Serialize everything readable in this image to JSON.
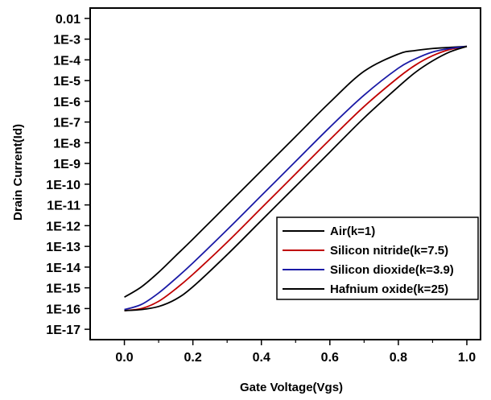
{
  "chart_data": {
    "type": "line",
    "title": "",
    "xlabel": "Gate Voltage(Vgs)",
    "ylabel": "Drain Current(Id)",
    "xlim": [
      -0.1,
      1.04
    ],
    "ylim_exp": [
      -17.5,
      -1.5
    ],
    "y_scale": "log",
    "grid": false,
    "legend_position": "lower-right",
    "x_ticks": [
      {
        "value": 0.0,
        "label": "0.0"
      },
      {
        "value": 0.2,
        "label": "0.2"
      },
      {
        "value": 0.4,
        "label": "0.4"
      },
      {
        "value": 0.6,
        "label": "0.6"
      },
      {
        "value": 0.8,
        "label": "0.8"
      },
      {
        "value": 1.0,
        "label": "1.0"
      }
    ],
    "y_ticks": [
      {
        "exp": -2,
        "label": "0.01"
      },
      {
        "exp": -3,
        "label": "1E-3"
      },
      {
        "exp": -4,
        "label": "1E-4"
      },
      {
        "exp": -5,
        "label": "1E-5"
      },
      {
        "exp": -6,
        "label": "1E-6"
      },
      {
        "exp": -7,
        "label": "1E-7"
      },
      {
        "exp": -8,
        "label": "1E-8"
      },
      {
        "exp": -9,
        "label": "1E-9"
      },
      {
        "exp": -10,
        "label": "1E-10"
      },
      {
        "exp": -11,
        "label": "1E-11"
      },
      {
        "exp": -12,
        "label": "1E-12"
      },
      {
        "exp": -13,
        "label": "1E-13"
      },
      {
        "exp": -14,
        "label": "1E-14"
      },
      {
        "exp": -15,
        "label": "1E-15"
      },
      {
        "exp": -16,
        "label": "1E-16"
      },
      {
        "exp": -17,
        "label": "1E-17"
      }
    ],
    "series": [
      {
        "name": "Air(k=1)",
        "color": "#000000",
        "x": [
          0.0,
          0.05,
          0.1,
          0.15,
          0.2,
          0.3,
          0.4,
          0.5,
          0.6,
          0.7,
          0.8,
          0.85,
          0.9,
          0.95,
          1.0
        ],
        "log10_y": [
          -15.45,
          -14.95,
          -14.25,
          -13.45,
          -12.65,
          -11.0,
          -9.35,
          -7.7,
          -6.05,
          -4.55,
          -3.72,
          -3.55,
          -3.45,
          -3.4,
          -3.35
        ]
      },
      {
        "name": "Silicon nitride(k=7.5)",
        "color": "#c00000",
        "x": [
          0.0,
          0.05,
          0.1,
          0.15,
          0.2,
          0.3,
          0.4,
          0.5,
          0.6,
          0.7,
          0.8,
          0.85,
          0.9,
          0.95,
          1.0
        ],
        "log10_y": [
          -16.1,
          -16.0,
          -15.65,
          -15.05,
          -14.35,
          -12.8,
          -11.15,
          -9.5,
          -7.85,
          -6.25,
          -4.85,
          -4.25,
          -3.8,
          -3.5,
          -3.35
        ]
      },
      {
        "name": "Silicon dioxide(k=3.9)",
        "color": "#1a1aa6",
        "x": [
          0.0,
          0.05,
          0.1,
          0.15,
          0.2,
          0.3,
          0.4,
          0.5,
          0.6,
          0.7,
          0.8,
          0.85,
          0.9,
          0.95,
          1.0
        ],
        "log10_y": [
          -16.05,
          -15.8,
          -15.25,
          -14.55,
          -13.8,
          -12.2,
          -10.55,
          -8.9,
          -7.25,
          -5.7,
          -4.4,
          -3.95,
          -3.62,
          -3.45,
          -3.35
        ]
      },
      {
        "name": "Hafnium oxide(k=25)",
        "color": "#000000",
        "x": [
          0.0,
          0.05,
          0.1,
          0.15,
          0.2,
          0.3,
          0.4,
          0.5,
          0.6,
          0.7,
          0.8,
          0.85,
          0.9,
          0.95,
          1.0
        ],
        "log10_y": [
          -16.1,
          -16.05,
          -15.9,
          -15.55,
          -14.95,
          -13.4,
          -11.75,
          -10.1,
          -8.45,
          -6.8,
          -5.3,
          -4.6,
          -4.05,
          -3.62,
          -3.35
        ]
      }
    ]
  }
}
